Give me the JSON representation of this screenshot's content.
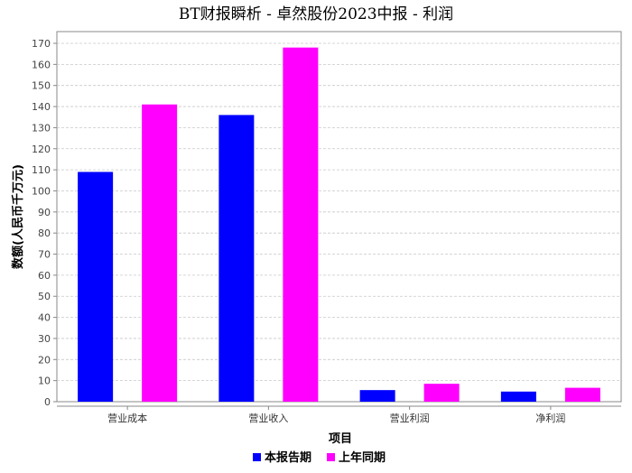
{
  "chart_data": {
    "type": "bar",
    "title": "BT财报瞬析 - 卓然股份2023中报 - 利润",
    "xlabel": "项目",
    "ylabel": "数额(人民币千万元)",
    "categories": [
      "营业成本",
      "营业收入",
      "营业利润",
      "净利润"
    ],
    "series": [
      {
        "name": "本报告期",
        "color": "#0000ff",
        "values": [
          109,
          136,
          5.5,
          4.8
        ]
      },
      {
        "name": "上年同期",
        "color": "#ff00ff",
        "values": [
          141,
          168,
          8.5,
          6.6
        ]
      }
    ],
    "ylim": [
      0,
      170
    ],
    "yticks": [
      0,
      10,
      20,
      30,
      40,
      50,
      60,
      70,
      80,
      90,
      100,
      110,
      120,
      130,
      140,
      150,
      160,
      170
    ],
    "grid": true,
    "legend_position": "bottom-center"
  }
}
